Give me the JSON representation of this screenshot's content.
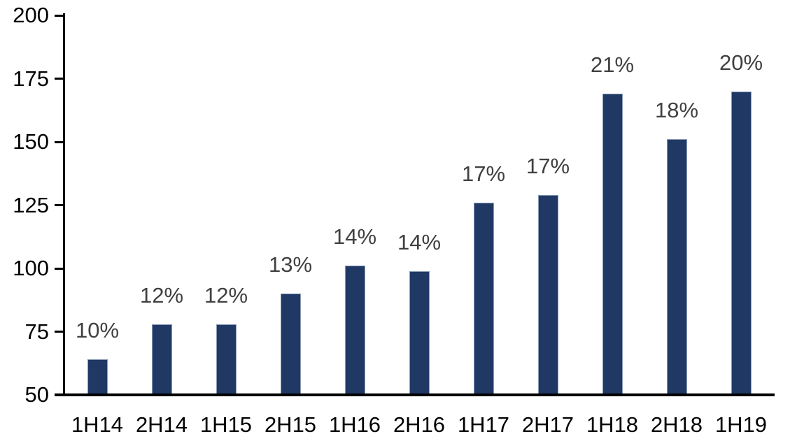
{
  "chart_data": {
    "type": "bar",
    "title": "",
    "xlabel": "",
    "ylabel": "",
    "categories": [
      "1H14",
      "2H14",
      "1H15",
      "2H15",
      "1H16",
      "2H16",
      "1H17",
      "2H17",
      "1H18",
      "2H18",
      "1H19"
    ],
    "values": [
      64,
      78,
      78,
      90,
      101,
      99,
      126,
      129,
      169,
      151,
      170
    ],
    "bar_labels": [
      "10%",
      "12%",
      "12%",
      "13%",
      "14%",
      "14%",
      "17%",
      "17%",
      "21%",
      "18%",
      "20%"
    ],
    "ylim": [
      50,
      200
    ],
    "yticks": [
      50,
      75,
      100,
      125,
      150,
      175,
      200
    ],
    "grid": false,
    "legend": "none",
    "colors": {
      "bar_fill": "#1F3864",
      "bar_border": "#8B9CB8",
      "bar_label_text": "#404040",
      "axis": "#000000",
      "tick_label_text": "#000000",
      "background": "#FFFFFF"
    }
  }
}
